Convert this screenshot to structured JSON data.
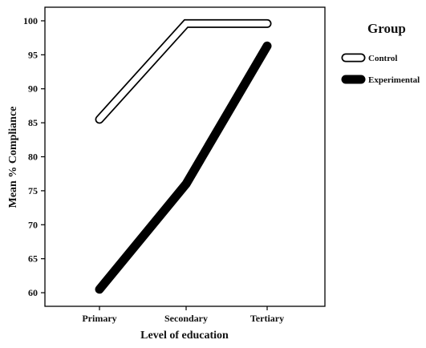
{
  "chart_data": {
    "type": "line",
    "title": "",
    "xlabel": "Level of education",
    "ylabel": "Mean % Compliance",
    "categories": [
      "Primary",
      "Secondary",
      "Tertiary"
    ],
    "ylim": [
      58,
      102
    ],
    "yticks": [
      60,
      65,
      70,
      75,
      80,
      85,
      90,
      95,
      100
    ],
    "series": [
      {
        "name": "Control",
        "values": [
          85.5,
          99.6,
          99.6
        ],
        "style": "outline",
        "color": "#ffffff",
        "stroke": "#000000"
      },
      {
        "name": "Experimental",
        "values": [
          60.5,
          76,
          96.3
        ],
        "style": "solid",
        "color": "#000000",
        "stroke": "#000000"
      }
    ],
    "legend": {
      "title": "Group",
      "placement": "right"
    },
    "grid": false
  }
}
